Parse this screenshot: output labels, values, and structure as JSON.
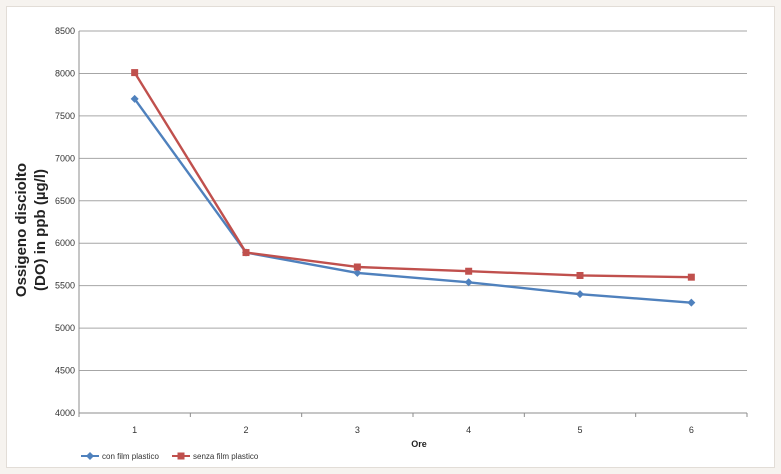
{
  "chart_data": {
    "type": "line",
    "categories": [
      "1",
      "2",
      "3",
      "4",
      "5",
      "6"
    ],
    "series": [
      {
        "name": "con film plastico",
        "values": [
          7700,
          5890,
          5650,
          5540,
          5400,
          5300
        ],
        "color": "#4f81bd",
        "marker": "diamond"
      },
      {
        "name": "senza film plastico",
        "values": [
          8010,
          5890,
          5720,
          5670,
          5620,
          5600
        ],
        "color": "#c0504d",
        "marker": "square"
      }
    ],
    "title": "",
    "xlabel": "Ore",
    "ylabel_lines": [
      "Ossigeno disciolto",
      "(DO) in ppb (µg/l)"
    ],
    "ylim": [
      4000,
      8500
    ],
    "yticks": [
      4000,
      4500,
      5000,
      5500,
      6000,
      6500,
      7000,
      7500,
      8000,
      8500
    ],
    "grid": true,
    "legend_position": "bottom-left"
  }
}
